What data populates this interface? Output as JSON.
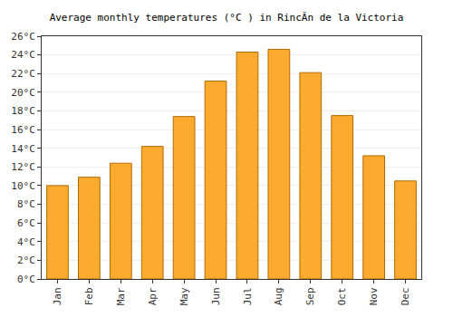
{
  "chart_data": {
    "type": "bar",
    "title": "Average monthly temperatures (°C ) in RincÃn de la Victoria",
    "categories": [
      "Jan",
      "Feb",
      "Mar",
      "Apr",
      "May",
      "Jun",
      "Jul",
      "Aug",
      "Sep",
      "Oct",
      "Nov",
      "Dec"
    ],
    "values": [
      10.0,
      10.9,
      12.4,
      14.2,
      17.4,
      21.2,
      24.3,
      24.6,
      22.1,
      17.5,
      13.2,
      10.5
    ],
    "color": "#fbaa30",
    "ylim": [
      0,
      26
    ],
    "yticks": [
      {
        "value": 0,
        "label": "0°C"
      },
      {
        "value": 2,
        "label": "2°C"
      },
      {
        "value": 4,
        "label": "4°C"
      },
      {
        "value": 6,
        "label": "6°C"
      },
      {
        "value": 8,
        "label": "8°C"
      },
      {
        "value": 10,
        "label": "10°C"
      },
      {
        "value": 12,
        "label": "12°C"
      },
      {
        "value": 14,
        "label": "14°C"
      },
      {
        "value": 16,
        "label": "16°C"
      },
      {
        "value": 18,
        "label": "18°C"
      },
      {
        "value": 20,
        "label": "20°C"
      },
      {
        "value": 22,
        "label": "22°C"
      },
      {
        "value": 24,
        "label": "24°C"
      },
      {
        "value": 26,
        "label": "26°C"
      }
    ],
    "grid": true
  }
}
